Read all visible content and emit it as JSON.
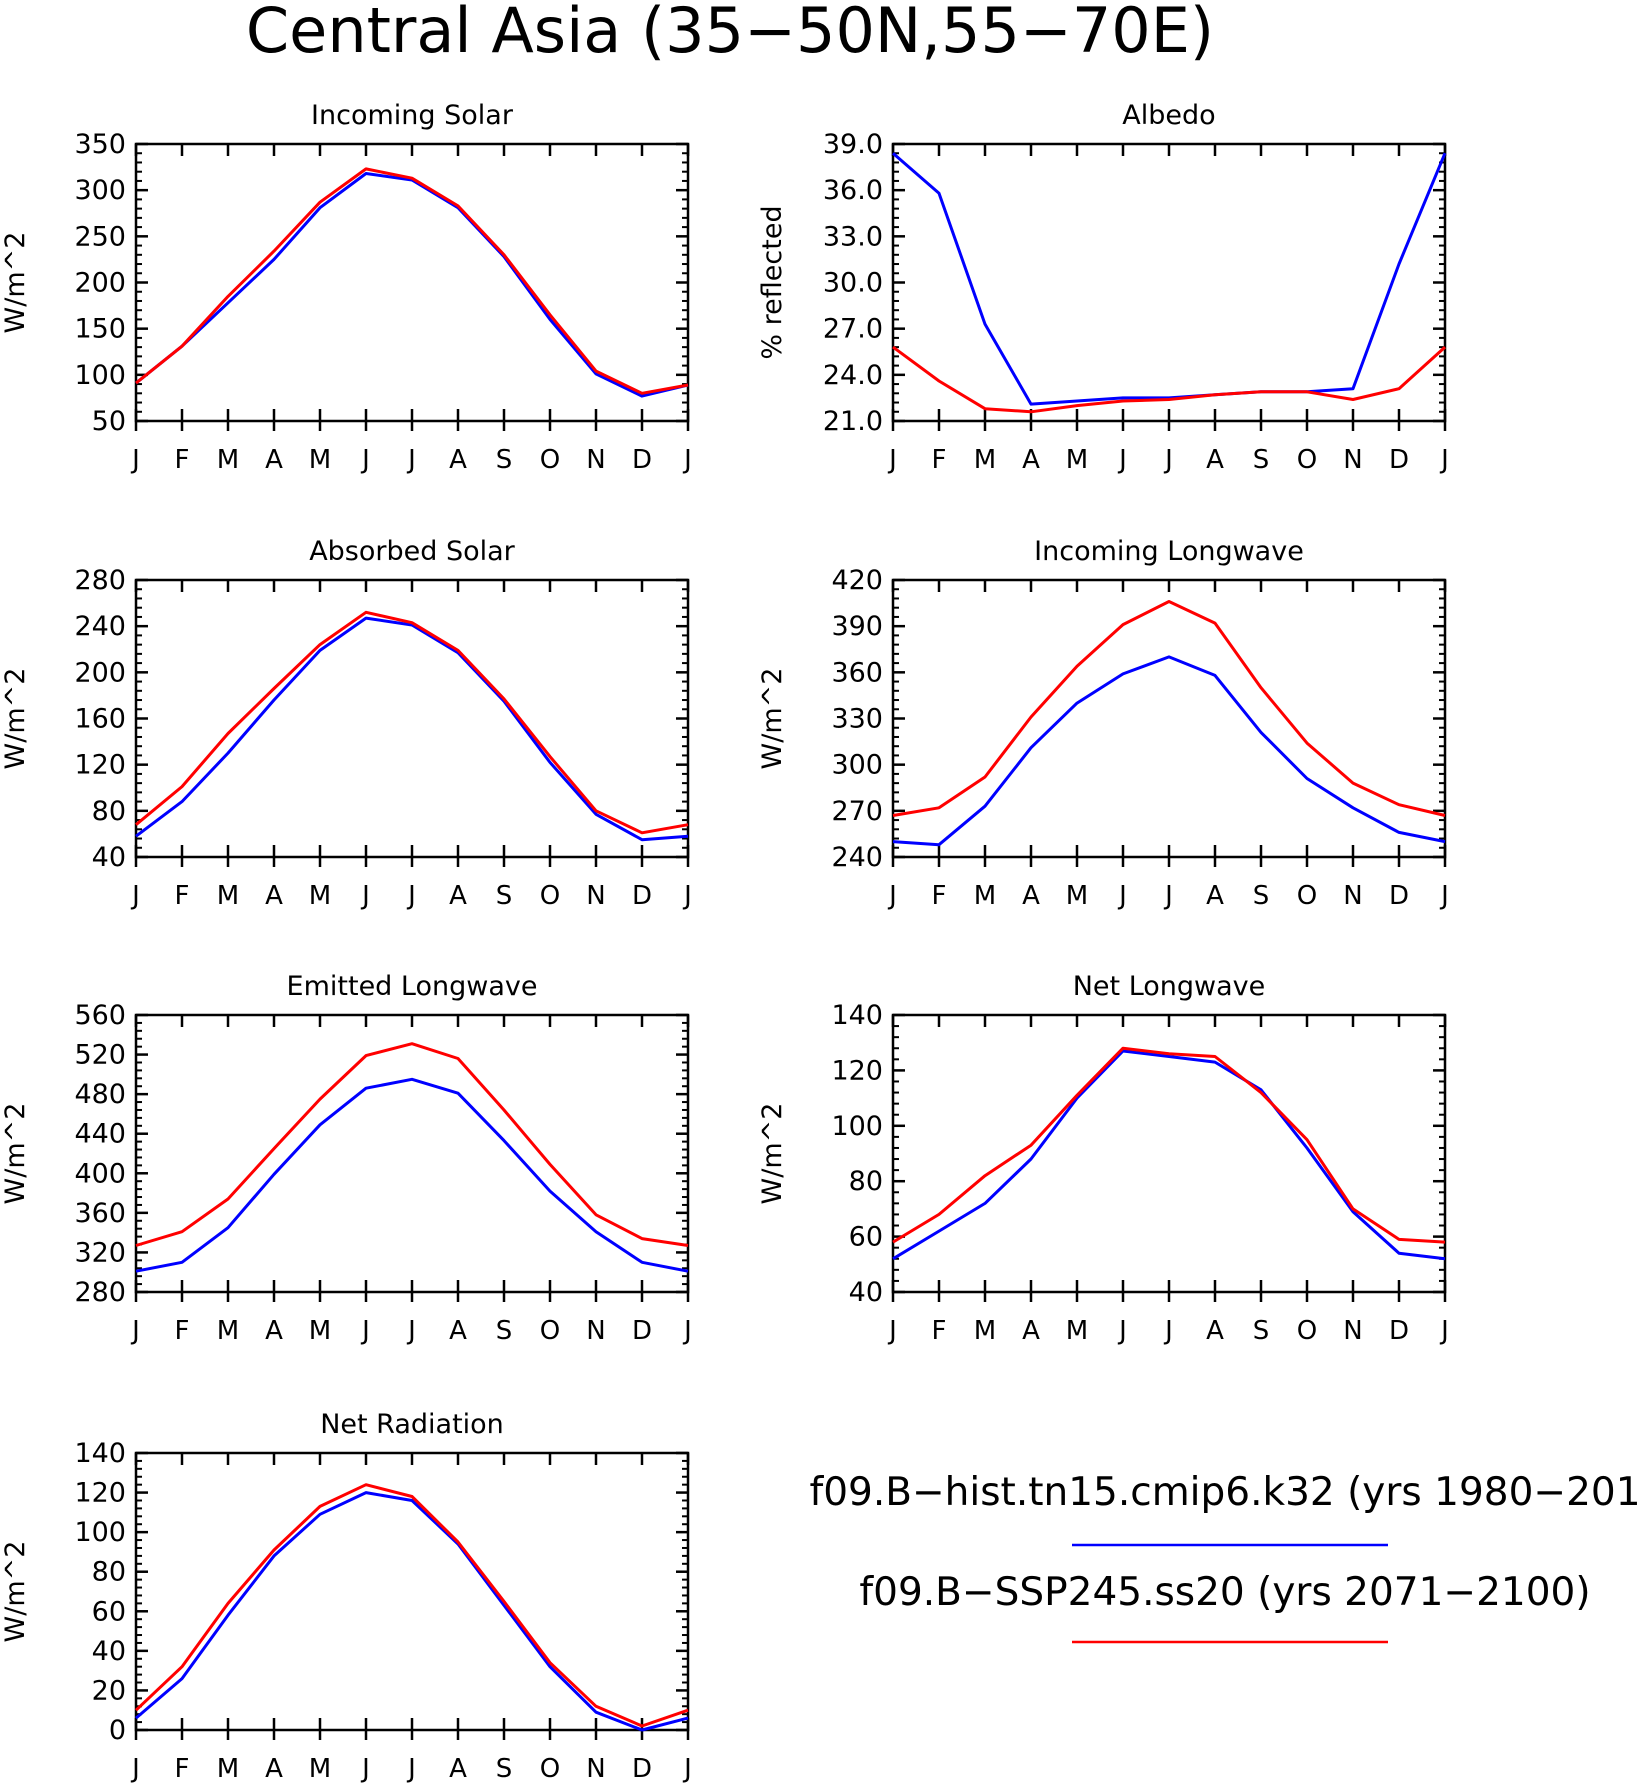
{
  "page": {
    "title": "Central Asia (35−50N,55−70E)"
  },
  "legend": [
    {
      "label": "f09.B−hist.tn15.cmip6.k32 (yrs 1980−201",
      "color": "#0000ff"
    },
    {
      "label": "f09.B−SSP245.ss20 (yrs 2071−2100)",
      "color": "#ff0000"
    }
  ],
  "chart_data": [
    {
      "type": "line",
      "title": "Incoming Solar",
      "xlabel": "",
      "ylabel": "W/m^2",
      "x": [
        "J",
        "F",
        "M",
        "A",
        "M",
        "J",
        "J",
        "A",
        "S",
        "O",
        "N",
        "D",
        "J"
      ],
      "ylim": [
        50,
        350
      ],
      "yticks": [
        "50",
        "100",
        "150",
        "200",
        "250",
        "300",
        "350"
      ],
      "series": [
        {
          "color": "#0000ff",
          "values": [
            91,
            131,
            178,
            225,
            281,
            318,
            311,
            281,
            228,
            160,
            101,
            77,
            89
          ]
        },
        {
          "color": "#ff0000",
          "values": [
            91,
            131,
            185,
            234,
            287,
            323,
            313,
            283,
            230,
            165,
            104,
            80,
            89
          ]
        }
      ]
    },
    {
      "type": "line",
      "title": "Albedo",
      "xlabel": "",
      "ylabel": "% reflected",
      "x": [
        "J",
        "F",
        "M",
        "A",
        "M",
        "J",
        "J",
        "A",
        "S",
        "O",
        "N",
        "D",
        "J"
      ],
      "ylim": [
        21.0,
        39.0
      ],
      "yticks": [
        "21.0",
        "24.0",
        "27.0",
        "30.0",
        "33.0",
        "36.0",
        "39.0"
      ],
      "series": [
        {
          "color": "#0000ff",
          "values": [
            38.4,
            35.8,
            27.3,
            22.1,
            22.3,
            22.5,
            22.5,
            22.7,
            22.9,
            22.9,
            23.1,
            31.2,
            38.4
          ]
        },
        {
          "color": "#ff0000",
          "values": [
            25.8,
            23.6,
            21.8,
            21.6,
            22.0,
            22.3,
            22.4,
            22.7,
            22.9,
            22.9,
            22.4,
            23.1,
            25.8
          ]
        }
      ]
    },
    {
      "type": "line",
      "title": "Absorbed Solar",
      "xlabel": "",
      "ylabel": "W/m^2",
      "x": [
        "J",
        "F",
        "M",
        "A",
        "M",
        "J",
        "J",
        "A",
        "S",
        "O",
        "N",
        "D",
        "J"
      ],
      "ylim": [
        40,
        280
      ],
      "yticks": [
        "40",
        "80",
        "120",
        "160",
        "200",
        "240",
        "280"
      ],
      "series": [
        {
          "color": "#0000ff",
          "values": [
            58,
            88,
            130,
            176,
            219,
            247,
            241,
            217,
            175,
            122,
            77,
            55,
            58
          ]
        },
        {
          "color": "#ff0000",
          "values": [
            68,
            101,
            147,
            186,
            224,
            252,
            243,
            219,
            177,
            127,
            80,
            61,
            68
          ]
        }
      ]
    },
    {
      "type": "line",
      "title": "Incoming Longwave",
      "xlabel": "",
      "ylabel": "W/m^2",
      "x": [
        "J",
        "F",
        "M",
        "A",
        "M",
        "J",
        "J",
        "A",
        "S",
        "O",
        "N",
        "D",
        "J"
      ],
      "ylim": [
        240,
        420
      ],
      "yticks": [
        "240",
        "270",
        "300",
        "330",
        "360",
        "390",
        "420"
      ],
      "series": [
        {
          "color": "#0000ff",
          "values": [
            250,
            248,
            273,
            311,
            340,
            359,
            370,
            358,
            321,
            291,
            272,
            256,
            250
          ]
        },
        {
          "color": "#ff0000",
          "values": [
            267,
            272,
            292,
            331,
            364,
            391,
            406,
            392,
            350,
            314,
            288,
            274,
            267
          ]
        }
      ]
    },
    {
      "type": "line",
      "title": "Emitted Longwave",
      "xlabel": "",
      "ylabel": "W/m^2",
      "x": [
        "J",
        "F",
        "M",
        "A",
        "M",
        "J",
        "J",
        "A",
        "S",
        "O",
        "N",
        "D",
        "J"
      ],
      "ylim": [
        280,
        560
      ],
      "yticks": [
        "280",
        "320",
        "360",
        "400",
        "440",
        "480",
        "520",
        "560"
      ],
      "series": [
        {
          "color": "#0000ff",
          "values": [
            301,
            310,
            345,
            399,
            449,
            486,
            495,
            481,
            433,
            382,
            341,
            310,
            301
          ]
        },
        {
          "color": "#ff0000",
          "values": [
            327,
            341,
            374,
            425,
            475,
            519,
            531,
            516,
            464,
            409,
            358,
            334,
            327
          ]
        }
      ]
    },
    {
      "type": "line",
      "title": "Net Longwave",
      "xlabel": "",
      "ylabel": "W/m^2",
      "x": [
        "J",
        "F",
        "M",
        "A",
        "M",
        "J",
        "J",
        "A",
        "S",
        "O",
        "N",
        "D",
        "J"
      ],
      "ylim": [
        40,
        140
      ],
      "yticks": [
        "40",
        "60",
        "80",
        "100",
        "120",
        "140"
      ],
      "series": [
        {
          "color": "#0000ff",
          "values": [
            52,
            62,
            72,
            88,
            110,
            127,
            125,
            123,
            113,
            92,
            69,
            54,
            52
          ]
        },
        {
          "color": "#ff0000",
          "values": [
            58,
            68,
            82,
            93,
            111,
            128,
            126,
            125,
            112,
            95,
            70,
            59,
            58
          ]
        }
      ]
    },
    {
      "type": "line",
      "title": "Net Radiation",
      "xlabel": "",
      "ylabel": "W/m^2",
      "x": [
        "J",
        "F",
        "M",
        "A",
        "M",
        "J",
        "J",
        "A",
        "S",
        "O",
        "N",
        "D",
        "J"
      ],
      "ylim": [
        0,
        140
      ],
      "yticks": [
        "0",
        "20",
        "40",
        "60",
        "80",
        "100",
        "120",
        "140"
      ],
      "series": [
        {
          "color": "#0000ff",
          "values": [
            6,
            26,
            58,
            88,
            109,
            120,
            116,
            94,
            63,
            32,
            9,
            0,
            6
          ]
        },
        {
          "color": "#ff0000",
          "values": [
            10,
            32,
            64,
            91,
            113,
            124,
            118,
            95,
            65,
            34,
            12,
            2,
            10
          ]
        }
      ]
    }
  ]
}
